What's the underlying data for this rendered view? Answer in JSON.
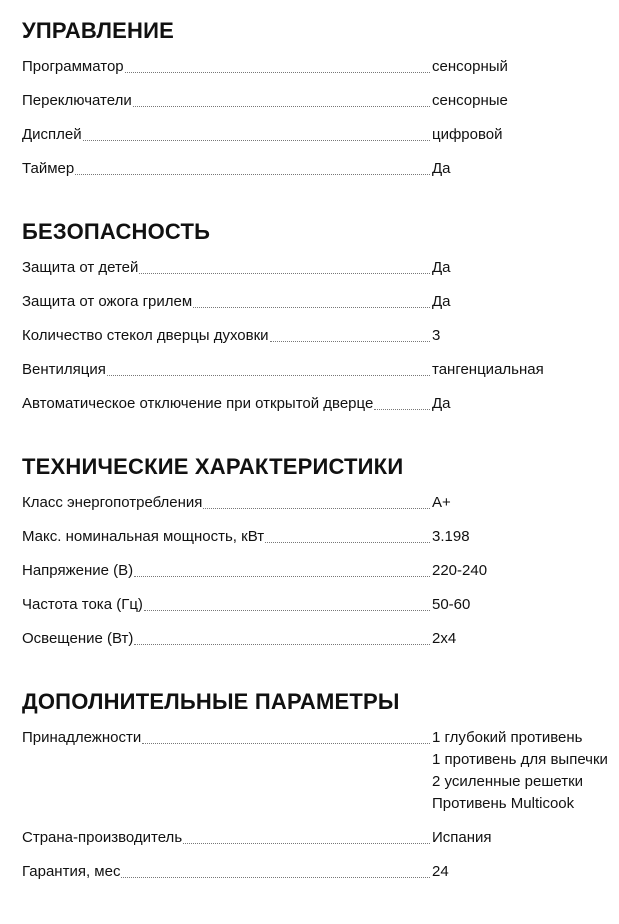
{
  "sections": [
    {
      "title": "УПРАВЛЕНИЕ",
      "rows": [
        {
          "label": "Программатор",
          "value": [
            "сенсорный"
          ]
        },
        {
          "label": "Переключатели",
          "value": [
            "сенсорные"
          ]
        },
        {
          "label": "Дисплей",
          "value": [
            "цифровой"
          ]
        },
        {
          "label": "Таймер",
          "value": [
            "Да"
          ]
        }
      ]
    },
    {
      "title": "БЕЗОПАСНОСТЬ",
      "rows": [
        {
          "label": "Защита от детей",
          "value": [
            "Да"
          ]
        },
        {
          "label": "Защита от ожога грилем",
          "value": [
            "Да"
          ]
        },
        {
          "label": "Количество стекол дверцы духовки",
          "value": [
            "3"
          ]
        },
        {
          "label": "Вентиляция",
          "value": [
            "тангенциальная"
          ]
        },
        {
          "label": "Автоматическое отключение при открытой дверце",
          "value": [
            "Да"
          ]
        }
      ]
    },
    {
      "title": "ТЕХНИЧЕСКИЕ ХАРАКТЕРИСТИКИ",
      "rows": [
        {
          "label": "Класс энергопотребления",
          "value": [
            "A+"
          ]
        },
        {
          "label": "Макс. номинальная мощность, кВт",
          "value": [
            "3.198"
          ]
        },
        {
          "label": "Напряжение (В)",
          "value": [
            "220-240"
          ]
        },
        {
          "label": "Частота тока (Гц)",
          "value": [
            "50-60"
          ]
        },
        {
          "label": "Освещение (Вт)",
          "value": [
            "2x4"
          ]
        }
      ]
    },
    {
      "title": "ДОПОЛНИТЕЛЬНЫЕ ПАРАМЕТРЫ",
      "rows": [
        {
          "label": "Принадлежности",
          "value": [
            "1 глубокий противень",
            "1 противень для выпечки",
            "2 усиленные решетки",
            "Противень Multicook"
          ]
        },
        {
          "label": "Страна-производитель",
          "value": [
            "Испания"
          ]
        },
        {
          "label": "Гарантия, мес",
          "value": [
            "24"
          ]
        }
      ]
    }
  ]
}
